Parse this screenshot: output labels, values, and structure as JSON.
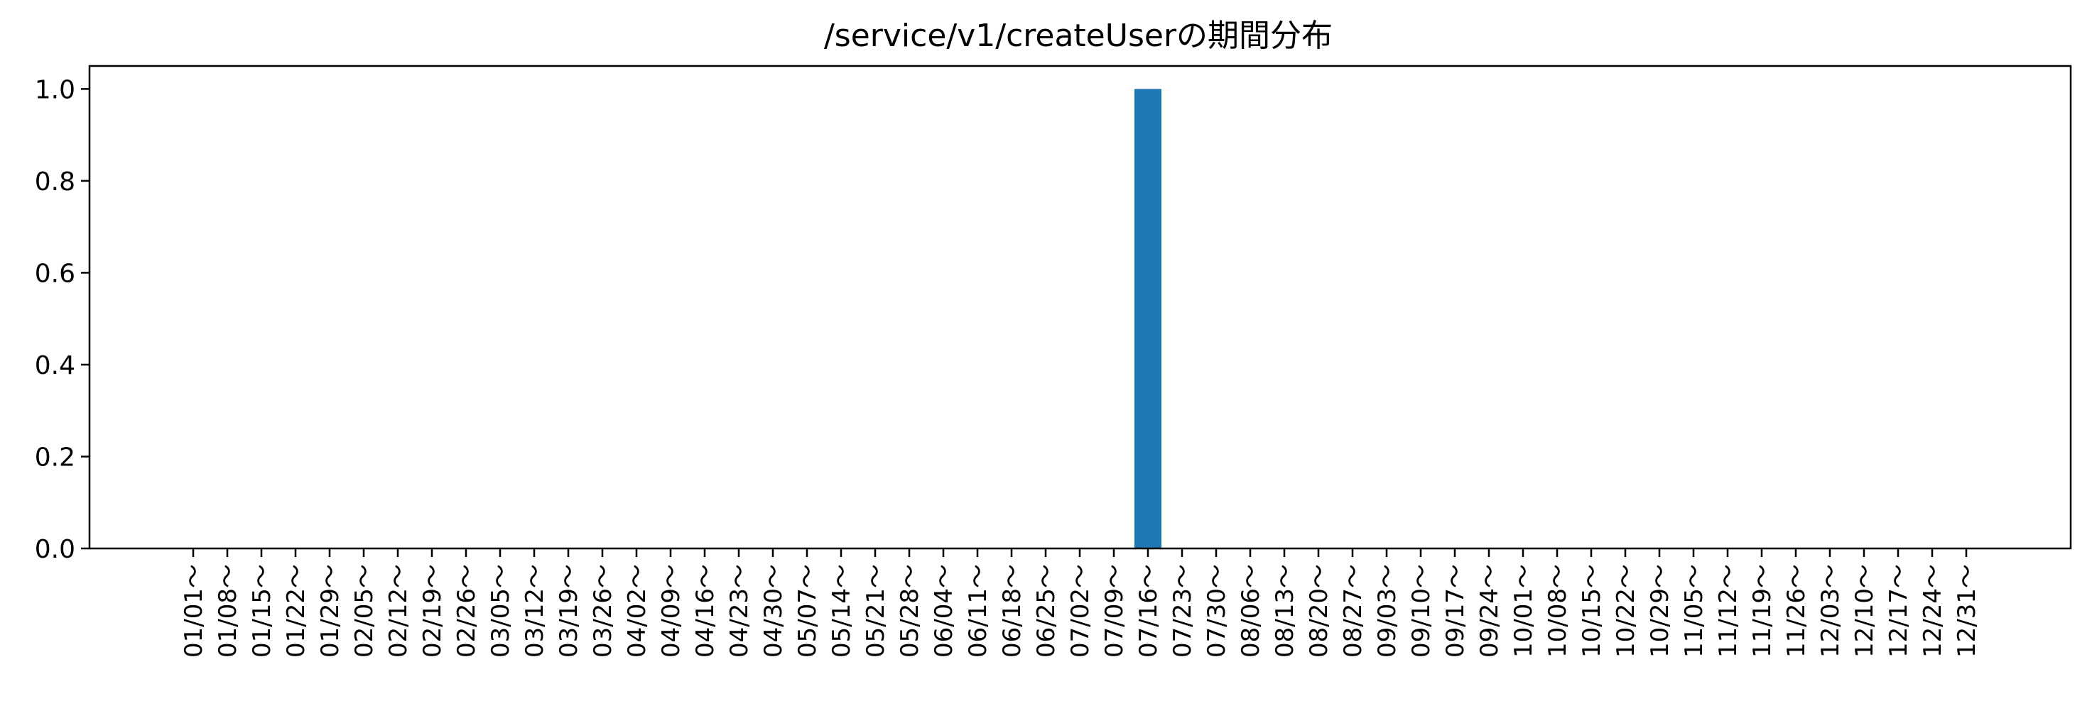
{
  "chart_data": {
    "type": "bar",
    "title": "/service/v1/createUserの期間分布",
    "xlabel": "",
    "ylabel": "",
    "ylim": [
      0,
      1.05
    ],
    "yticks": [
      "0.0",
      "0.2",
      "0.4",
      "0.6",
      "0.8",
      "1.0"
    ],
    "categories": [
      "01/01～",
      "01/08～",
      "01/15～",
      "01/22～",
      "01/29～",
      "02/05～",
      "02/12～",
      "02/19～",
      "02/26～",
      "03/05～",
      "03/12～",
      "03/19～",
      "03/26～",
      "04/02～",
      "04/09～",
      "04/16～",
      "04/23～",
      "04/30～",
      "05/07～",
      "05/14～",
      "05/21～",
      "05/28～",
      "06/04～",
      "06/11～",
      "06/18～",
      "06/25～",
      "07/02～",
      "07/09～",
      "07/16～",
      "07/23～",
      "07/30～",
      "08/06～",
      "08/13～",
      "08/20～",
      "08/27～",
      "09/03～",
      "09/10～",
      "09/17～",
      "09/24～",
      "10/01～",
      "10/08～",
      "10/15～",
      "10/22～",
      "10/29～",
      "11/05～",
      "11/12～",
      "11/19～",
      "11/26～",
      "12/03～",
      "12/10～",
      "12/17～",
      "12/24～",
      "12/31～"
    ],
    "values": [
      0,
      0,
      0,
      0,
      0,
      0,
      0,
      0,
      0,
      0,
      0,
      0,
      0,
      0,
      0,
      0,
      0,
      0,
      0,
      0,
      0,
      0,
      0,
      0,
      0,
      0,
      0,
      0,
      1,
      0,
      0,
      0,
      0,
      0,
      0,
      0,
      0,
      0,
      0,
      0,
      0,
      0,
      0,
      0,
      0,
      0,
      0,
      0,
      0,
      0,
      0,
      0,
      0
    ],
    "bar_color": "#1f77b4",
    "grid": false,
    "legend": "none"
  }
}
